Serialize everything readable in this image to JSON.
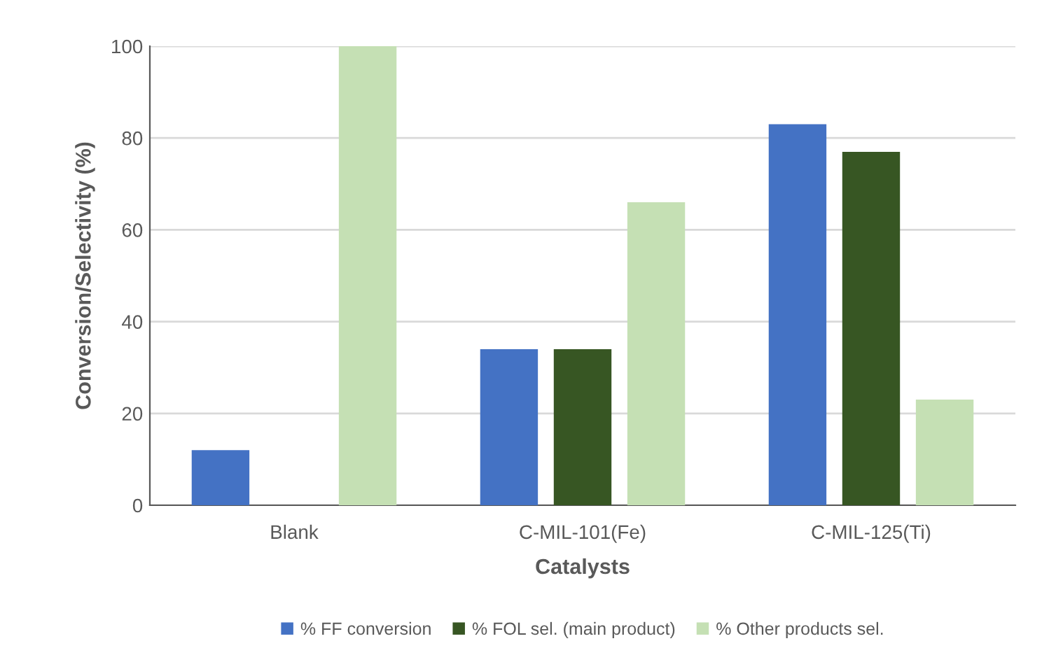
{
  "chart_data": {
    "type": "bar",
    "xlabel": "Catalysts",
    "ylabel": "Conversion/Selectivity (%)",
    "categories": [
      "Blank",
      "C-MIL-101(Fe)",
      "C-MIL-125(Ti)"
    ],
    "series": [
      {
        "name": "% FF conversion",
        "color": "#4472c4",
        "values": [
          12,
          34,
          83
        ]
      },
      {
        "name": "% FOL sel. (main product)",
        "color": "#375623",
        "values": [
          0,
          34,
          77
        ]
      },
      {
        "name": "% Other products sel.",
        "color": "#c5e0b4",
        "values": [
          100,
          66,
          23
        ]
      }
    ],
    "ylim": [
      0,
      100
    ],
    "yticks": [
      0,
      20,
      40,
      60,
      80,
      100
    ],
    "grid": "y",
    "legend": "bottom"
  }
}
